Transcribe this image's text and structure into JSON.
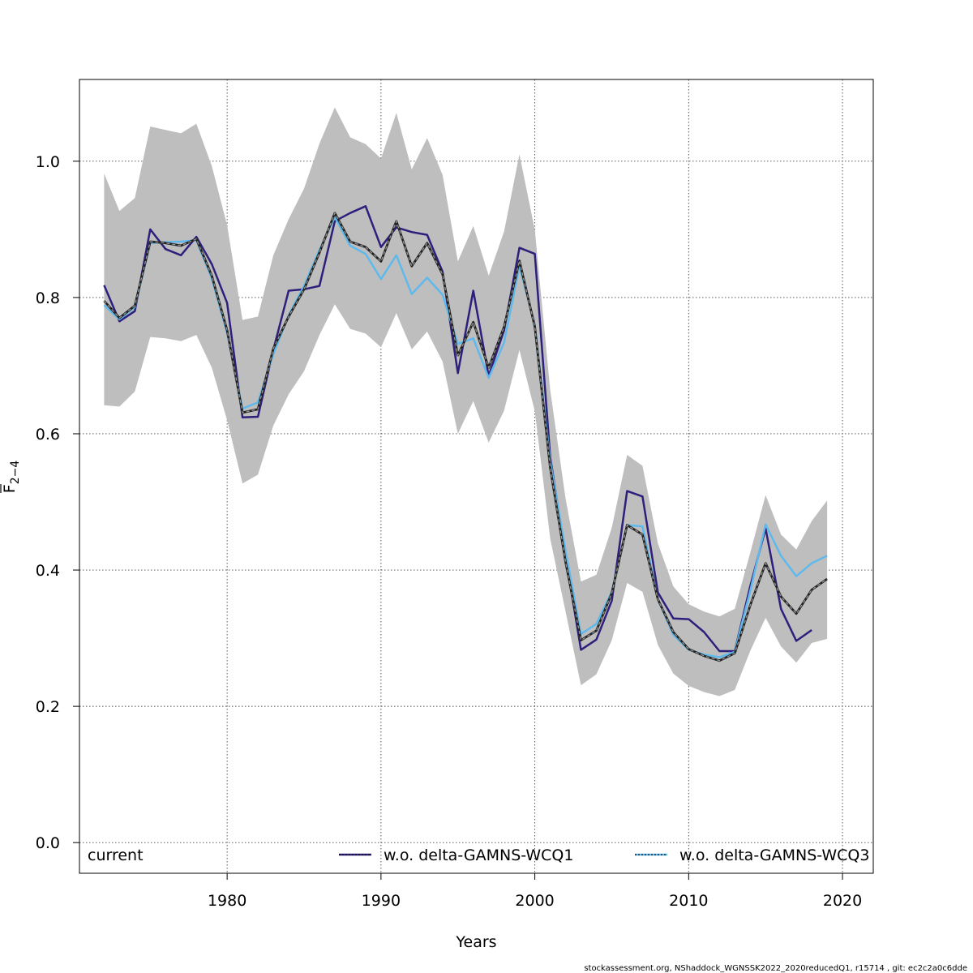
{
  "chart_data": {
    "type": "line",
    "xlabel": "Years",
    "ylabel": "F",
    "ylabel_sub": "2−4",
    "xlim": [
      1970.4,
      2022.0
    ],
    "ylim": [
      -0.045,
      1.12
    ],
    "xticks": [
      1980,
      1990,
      2000,
      2010,
      2020
    ],
    "yticks": [
      0.0,
      0.2,
      0.4,
      0.6,
      0.8,
      1.0
    ],
    "ytick_labels": [
      "0.0",
      "0.2",
      "0.4",
      "0.6",
      "0.8",
      "1.0"
    ],
    "grid": true,
    "legend_position": "bottom",
    "years": [
      1972,
      1973,
      1974,
      1975,
      1976,
      1977,
      1978,
      1979,
      1980,
      1981,
      1982,
      1983,
      1984,
      1985,
      1986,
      1987,
      1988,
      1989,
      1990,
      1991,
      1992,
      1993,
      1994,
      1995,
      1996,
      1997,
      1998,
      1999,
      2000,
      2001,
      2002,
      2003,
      2004,
      2005,
      2006,
      2007,
      2008,
      2009,
      2010,
      2011,
      2012,
      2013,
      2014,
      2015,
      2016,
      2017,
      2018,
      2019
    ],
    "band": {
      "lower": [
        0.642,
        0.64,
        0.662,
        0.742,
        0.74,
        0.736,
        0.745,
        0.697,
        0.62,
        0.527,
        0.54,
        0.612,
        0.658,
        0.692,
        0.745,
        0.79,
        0.754,
        0.747,
        0.727,
        0.777,
        0.724,
        0.75,
        0.706,
        0.6,
        0.648,
        0.587,
        0.634,
        0.723,
        0.633,
        0.446,
        0.339,
        0.231,
        0.247,
        0.297,
        0.381,
        0.368,
        0.29,
        0.248,
        0.23,
        0.221,
        0.215,
        0.224,
        0.281,
        0.33,
        0.288,
        0.264,
        0.293,
        0.299
      ],
      "upper": [
        0.982,
        0.927,
        0.946,
        1.051,
        1.046,
        1.041,
        1.055,
        0.993,
        0.906,
        0.767,
        0.772,
        0.862,
        0.915,
        0.96,
        1.026,
        1.079,
        1.035,
        1.025,
        1.004,
        1.071,
        0.988,
        1.034,
        0.98,
        0.853,
        0.905,
        0.832,
        0.897,
        1.01,
        0.899,
        0.664,
        0.505,
        0.383,
        0.393,
        0.462,
        0.569,
        0.553,
        0.439,
        0.376,
        0.35,
        0.339,
        0.332,
        0.343,
        0.425,
        0.51,
        0.452,
        0.43,
        0.472,
        0.502
      ]
    },
    "series": [
      {
        "name": "current",
        "color": "#222222",
        "dash": "dashed",
        "values": [
          0.795,
          0.77,
          0.788,
          0.882,
          0.88,
          0.876,
          0.886,
          0.832,
          0.752,
          0.631,
          0.636,
          0.725,
          0.772,
          0.812,
          0.866,
          0.924,
          0.882,
          0.874,
          0.853,
          0.912,
          0.846,
          0.88,
          0.834,
          0.715,
          0.764,
          0.697,
          0.757,
          0.854,
          0.757,
          0.55,
          0.412,
          0.297,
          0.311,
          0.366,
          0.466,
          0.452,
          0.357,
          0.309,
          0.284,
          0.274,
          0.267,
          0.278,
          0.348,
          0.41,
          0.361,
          0.336,
          0.371,
          0.387
        ]
      },
      {
        "name": "w.o. delta-GAMNS-WCQ1",
        "color": "#2e1f7c",
        "dash": "solid",
        "values": [
          0.818,
          0.765,
          0.78,
          0.9,
          0.871,
          0.862,
          0.889,
          0.849,
          0.792,
          0.624,
          0.625,
          0.723,
          0.81,
          0.812,
          0.817,
          0.912,
          0.924,
          0.934,
          0.874,
          0.903,
          0.896,
          0.892,
          0.838,
          0.689,
          0.81,
          0.685,
          0.752,
          0.873,
          0.864,
          0.566,
          0.42,
          0.283,
          0.298,
          0.355,
          0.516,
          0.508,
          0.367,
          0.329,
          0.328,
          0.309,
          0.281,
          0.281,
          0.376,
          0.461,
          0.343,
          0.296,
          0.312,
          null
        ]
      },
      {
        "name": "w.o. delta-GAMNS-WCQ3",
        "color": "#5fb9ec",
        "dash": "solid",
        "values": [
          0.789,
          0.768,
          0.786,
          0.88,
          0.881,
          0.882,
          0.884,
          0.828,
          0.748,
          0.637,
          0.646,
          0.717,
          0.774,
          0.817,
          0.87,
          0.918,
          0.876,
          0.864,
          0.827,
          0.862,
          0.805,
          0.829,
          0.804,
          0.732,
          0.74,
          0.682,
          0.734,
          0.846,
          0.76,
          0.56,
          0.428,
          0.306,
          0.321,
          0.368,
          0.466,
          0.464,
          0.357,
          0.305,
          0.283,
          0.276,
          0.272,
          0.28,
          0.369,
          0.467,
          0.421,
          0.391,
          0.41,
          0.421
        ]
      }
    ],
    "footer": "stockassessment.org, NShaddock_WGNSSK2022_2020reducedQ1, r15714 , git: ec2c2a0c6dde"
  }
}
